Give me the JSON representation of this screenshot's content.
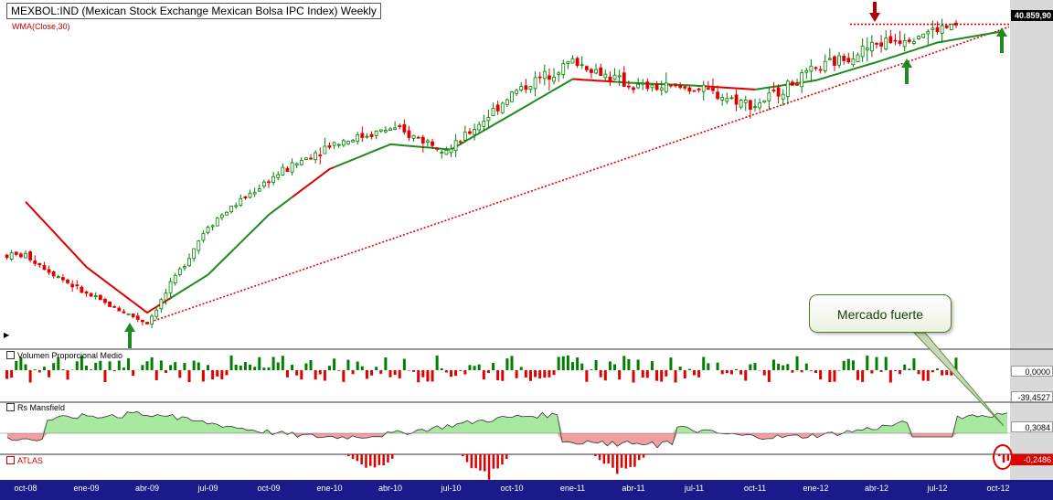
{
  "title": "MEXBOL:IND (Mexican Stock Exchange Mexican Bolsa IPC Index) Weekly",
  "indicator_label": "WMA(Close,30)",
  "panels": {
    "volume": {
      "title": "Volumen Proporcional Medio",
      "value": "0,0000",
      "min_value": "-39,4527"
    },
    "rs": {
      "title": "Rs Mansfield",
      "value": "0,3084"
    },
    "atlas": {
      "title": "ATLAS",
      "value": "-0,2486"
    }
  },
  "price_label": "40.859,90",
  "callout": "Mercado fuerte",
  "colors": {
    "up": "#008000",
    "down": "#e00000",
    "wma_green": "#1f8a1f",
    "wma_red": "#dd0000",
    "rs_fill_pos": "#a8e8a0",
    "rs_fill_neg": "#f0a0a0",
    "axis_bg": "#1a1a8a",
    "right_axis_bg": "#d9d9d9"
  },
  "x_ticks": [
    "oct-08",
    "ene-09",
    "abr-09",
    "jul-09",
    "oct-09",
    "ene-10",
    "abr-10",
    "jul-10",
    "oct-10",
    "ene-11",
    "abr-11",
    "jul-11",
    "oct-11",
    "ene-12",
    "abr-12",
    "jul-12",
    "oct-12"
  ],
  "chart_data": {
    "type": "line",
    "title": "MEXBOL:IND (Mexican Stock Exchange Mexican Bolsa IPC Index) Weekly",
    "x_ticks": [
      "oct-08",
      "ene-09",
      "abr-09",
      "jul-09",
      "oct-09",
      "ene-10",
      "abr-10",
      "jul-10",
      "oct-10",
      "ene-11",
      "abr-11",
      "jul-11",
      "oct-11",
      "ene-12",
      "abr-12",
      "jul-12",
      "oct-12"
    ],
    "series": [
      {
        "name": "MEXBOL:IND",
        "x": [
          "oct-08",
          "ene-09",
          "abr-09",
          "jul-09",
          "oct-09",
          "ene-10",
          "abr-10",
          "jul-10",
          "oct-10",
          "ene-11",
          "abr-11",
          "jul-11",
          "oct-11",
          "ene-12",
          "abr-12",
          "jul-12",
          "oct-12"
        ],
        "values": [
          23500,
          20500,
          18300,
          25800,
          29300,
          32000,
          33200,
          31600,
          35900,
          38400,
          36400,
          36300,
          35000,
          37700,
          39700,
          40800,
          41600
        ]
      },
      {
        "name": "WMA(Close,30)",
        "x": [
          "oct-08",
          "ene-09",
          "abr-09",
          "jul-09",
          "oct-09",
          "ene-10",
          "abr-10",
          "jul-10",
          "oct-10",
          "ene-11",
          "abr-11",
          "jul-11",
          "oct-11",
          "ene-12",
          "abr-12",
          "jul-12",
          "oct-12"
        ],
        "values": [
          27600,
          22600,
          19100,
          22000,
          26600,
          30100,
          32000,
          31600,
          34300,
          37000,
          36700,
          36500,
          36200,
          36900,
          38300,
          39800,
          40600
        ]
      }
    ],
    "last_value": "40.859,90",
    "annotations": [
      "Mercado fuerte"
    ]
  }
}
